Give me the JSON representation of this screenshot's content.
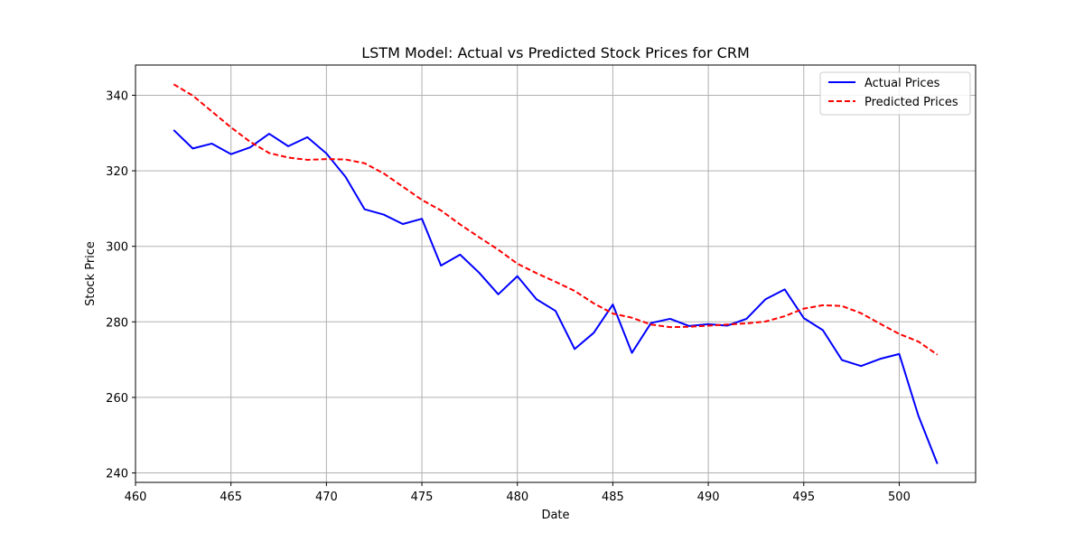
{
  "chart_data": {
    "type": "line",
    "title": "LSTM Model: Actual vs Predicted Stock Prices for CRM",
    "xlabel": "Date",
    "ylabel": "Stock Price",
    "xlim": [
      460,
      504
    ],
    "ylim": [
      237.5,
      348
    ],
    "xticks": [
      460,
      465,
      470,
      475,
      480,
      485,
      490,
      495,
      500
    ],
    "yticks": [
      240,
      260,
      280,
      300,
      320,
      340
    ],
    "grid": true,
    "legend_position": "top-right",
    "x": [
      462,
      463,
      464,
      465,
      466,
      467,
      468,
      469,
      470,
      471,
      472,
      473,
      474,
      475,
      476,
      477,
      478,
      479,
      480,
      481,
      482,
      483,
      484,
      485,
      486,
      487,
      488,
      489,
      490,
      491,
      492,
      493,
      494,
      495,
      496,
      497,
      498,
      499,
      500,
      501,
      502
    ],
    "series": [
      {
        "name": "Actual Prices",
        "color": "#0000ff",
        "style": "solid",
        "values": [
          330.8,
          325.9,
          327.2,
          324.4,
          326.2,
          329.8,
          326.5,
          328.9,
          324.6,
          318.4,
          309.8,
          308.4,
          305.9,
          307.3,
          294.9,
          297.8,
          293.0,
          287.3,
          292.1,
          286.0,
          282.9,
          272.8,
          277.1,
          284.6,
          271.8,
          279.7,
          280.8,
          278.9,
          279.4,
          279.0,
          280.8,
          286.0,
          288.6,
          281.0,
          277.8,
          269.9,
          268.3,
          270.2,
          271.5,
          255.2,
          242.4
        ]
      },
      {
        "name": "Predicted Prices",
        "color": "#ff0000",
        "style": "dashed",
        "values": [
          342.9,
          339.9,
          335.7,
          331.5,
          327.7,
          324.7,
          323.5,
          322.9,
          323.1,
          323.0,
          322.0,
          319.3,
          315.8,
          312.3,
          309.5,
          305.8,
          302.4,
          299.1,
          295.4,
          292.9,
          290.6,
          288.2,
          284.9,
          282.2,
          281.1,
          279.3,
          278.6,
          278.7,
          279.0,
          279.3,
          279.6,
          280.1,
          281.5,
          283.5,
          284.4,
          284.2,
          282.3,
          279.5,
          276.8,
          274.8,
          271.3
        ]
      }
    ]
  }
}
